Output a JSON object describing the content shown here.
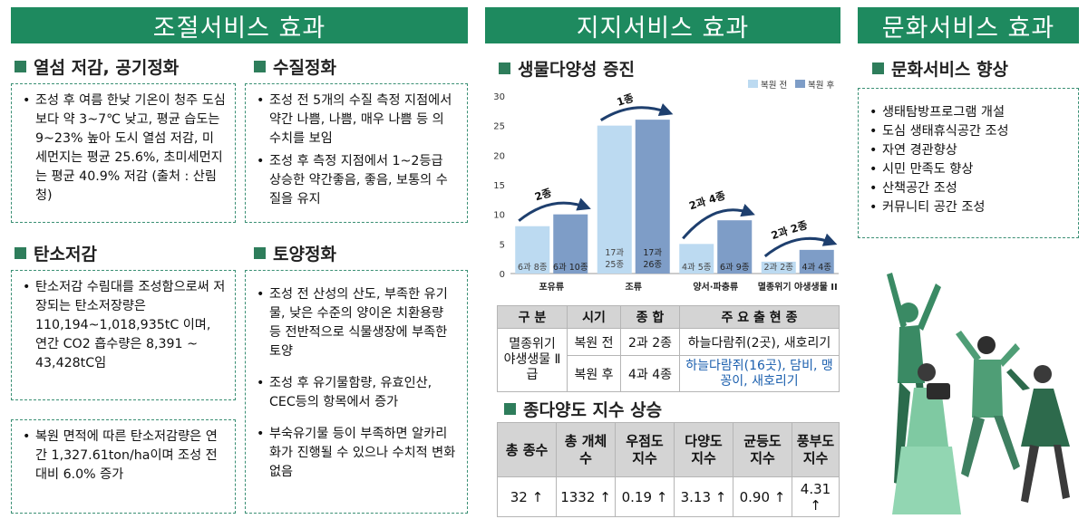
{
  "left": {
    "header": "조절서비스 효과",
    "heat": {
      "title": "열섬 저감, 공기정화",
      "text": "조성 후 여름 한낮 기온이 청주 도심보다 약 3~7℃ 낮고, 평균 습도는 9~23% 높아 도시 열섬 저감, 미세먼지는 평균 25.6%, 초미세먼지는 평균 40.9% 저감 (출처 : 산림청)"
    },
    "carbon": {
      "title": "탄소저감",
      "text1": "탄소저감 수림대를 조성함으로써 저장되는 탄소저장량은 110,194~1,018,935tC 이며, 연간 CO2 흡수량은 8,391 ~ 43,428tC임",
      "text2": "복원 면적에 따른 탄소저감량은 연간 1,327.61ton/ha이며 조성 전 대비 6.0% 증가"
    },
    "water": {
      "title": "수질정화",
      "items": [
        "조성 전 5개의 수질 측정 지점에서 약간 나쁨, 나쁨, 매우 나쁨 등 의 수치를 보임",
        "조성 후 측정 지점에서 1~2등급 상승한 약간좋음, 좋음, 보통의 수질을 유지"
      ]
    },
    "soil": {
      "title": "토양정화",
      "items": [
        "조성 전 산성의 산도, 부족한 유기물, 낮은 수준의 양이온 치환용량 등 전반적으로 식물생장에 부족한 토양",
        "조성 후 유기물함량, 유효인산, CEC등의 항목에서 증가",
        "부숙유기물 등이 부족하면 알카리화가 진행될 수 있으나 수치적 변화 없음"
      ]
    }
  },
  "mid": {
    "header": "지지서비스 효과",
    "bio_title": "생물다양성 증진",
    "table": {
      "headers": [
        "구 분",
        "시기",
        "종 합",
        "주 요 출 현 종"
      ],
      "group": "멸종위기 야생생물 Ⅱ급",
      "rows": [
        {
          "period": "복원 전",
          "total": "2과 2종",
          "species": "하늘다람쥐(2곳), 새호리기"
        },
        {
          "period": "복원 후",
          "total": "4과 4종",
          "species": "하늘다람쥐(16곳), 담비, 맹꽁이, 새호리기"
        }
      ]
    },
    "index_title": "종다양도 지수 상승",
    "index_table": {
      "headers": [
        "총 종수",
        "총 개체수",
        "우점도 지수",
        "다양도 지수",
        "균등도 지수",
        "풍부도 지수"
      ],
      "values": [
        "32",
        "1332",
        "0.19",
        "3.13",
        "0.90",
        "4.31"
      ],
      "arrow": "↑"
    }
  },
  "right": {
    "header": "문화서비스 효과",
    "title": "문화서비스 향상",
    "items": [
      "생태탐방프로그램 개설",
      "도심 생태휴식공간 조성",
      "자연 경관향상",
      "시민 만족도 향상",
      "산책공간 조성",
      "커뮤니티 공간 조성"
    ]
  },
  "chart_data": {
    "type": "bar",
    "categories": [
      "포유류",
      "조류",
      "양서·파충류",
      "멸종위기 야생생물 II"
    ],
    "series": [
      {
        "name": "복원 전",
        "color": "#bcdaf1",
        "values": [
          8,
          25,
          5,
          2
        ],
        "labels": [
          "6과 8종",
          "17과 25종",
          "4과 5종",
          "2과 2종"
        ]
      },
      {
        "name": "복원 후",
        "color": "#7e9dc7",
        "values": [
          10,
          26,
          9,
          4
        ],
        "labels": [
          "6과 10종",
          "17과 26종",
          "6과 9종",
          "4과 4종"
        ]
      }
    ],
    "annotations": [
      "2종",
      "1종",
      "2과 4종",
      "2과 2종"
    ],
    "yticks": [
      0,
      5,
      10,
      15,
      20,
      25,
      30
    ],
    "ylim": [
      0,
      30
    ],
    "legend": "top-right"
  },
  "colors": {
    "header": "#1e8a5f",
    "accent": "#2e7d5b",
    "before": "#bcdaf1",
    "after": "#7e9dc7",
    "arrow": "#1e3f6e"
  }
}
